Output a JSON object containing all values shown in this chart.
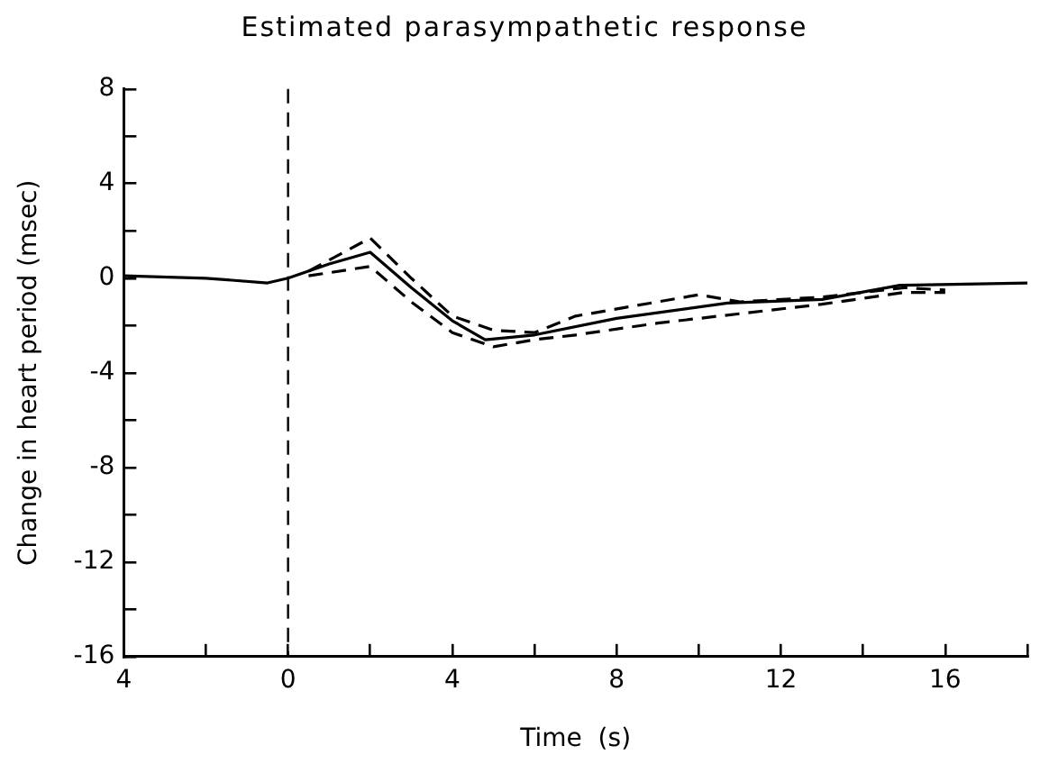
{
  "chart_data": {
    "type": "line",
    "title": "Estimated parasympathetic response",
    "xlabel": "Time  (s)",
    "ylabel": "Change in heart period (msec)",
    "xlim": [
      -4,
      18
    ],
    "ylim": [
      -16,
      8
    ],
    "xticks": [
      {
        "value": -4,
        "label": "4"
      },
      {
        "value": -2,
        "label": null
      },
      0,
      {
        "value": 2,
        "label": null
      },
      4,
      {
        "value": 6,
        "label": null
      },
      8,
      {
        "value": 10,
        "label": null
      },
      12,
      {
        "value": 14,
        "label": null
      },
      16,
      {
        "value": 18,
        "label": null
      }
    ],
    "yticks": [
      -16,
      {
        "value": -14,
        "label": null
      },
      -12,
      {
        "value": -10,
        "label": null
      },
      -8,
      {
        "value": -6,
        "label": null
      },
      -4,
      {
        "value": -2,
        "label": null
      },
      0,
      {
        "value": 2,
        "label": null
      },
      4,
      {
        "value": 6,
        "label": null
      },
      8
    ],
    "series": [
      {
        "color": "#000000",
        "line_style": "solid",
        "x": [
          -4,
          -2,
          -0.5,
          0,
          1,
          2,
          3,
          4,
          4.8,
          6,
          8,
          10.7,
          13,
          14.9,
          18
        ],
        "values": [
          0.1,
          0,
          -0.2,
          0,
          0.6,
          1.1,
          -0.4,
          -1.8,
          -2.6,
          -2.4,
          -1.7,
          -1.05,
          -0.9,
          -0.3,
          -0.2
        ]
      },
      {
        "color": "#000000",
        "line_style": "dashed",
        "x": [
          0.5,
          2,
          3,
          4,
          5,
          6,
          7,
          9,
          10,
          11,
          13,
          15,
          16
        ],
        "values": [
          0.3,
          1.7,
          0,
          -1.6,
          -2.2,
          -2.3,
          -1.6,
          -1,
          -0.7,
          -1,
          -0.8,
          -0.4,
          -0.5
        ]
      },
      {
        "color": "#000000",
        "line_style": "dashed",
        "x": [
          0.5,
          2,
          3,
          4,
          5,
          6,
          7,
          9,
          11,
          13,
          15,
          16
        ],
        "values": [
          0.1,
          0.5,
          -1,
          -2.3,
          -2.9,
          -2.6,
          -2.4,
          -1.9,
          -1.5,
          -1.1,
          -0.6,
          -0.6
        ]
      }
    ],
    "ref_lines": [
      {
        "axis": "x",
        "value": 0,
        "line_style": "dashed",
        "color": "#000000"
      }
    ],
    "marker": "none",
    "legend": false,
    "grid": false
  }
}
